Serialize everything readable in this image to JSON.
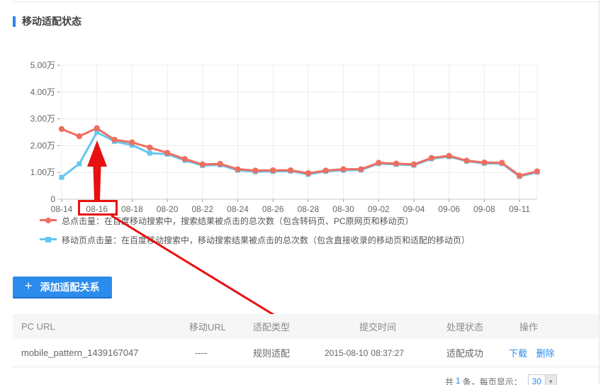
{
  "colors": {
    "accent": "#2b8ced",
    "annotation": "#e81010",
    "link": "#2d8bef",
    "series_total": "#ee6e60",
    "series_mobile": "#66c6f2"
  },
  "header": {
    "title": "移动适配状态"
  },
  "chart_data": {
    "type": "line",
    "title": "",
    "xlabel": "",
    "ylabel": "",
    "unit": "万",
    "ylim": [
      0,
      5
    ],
    "grid": true,
    "legend_position": "bottom-left",
    "x_labels": [
      "08-14",
      "08-16",
      "08-18",
      "08-20",
      "08-22",
      "08-24",
      "08-26",
      "08-28",
      "08-30",
      "09-02",
      "09-04",
      "09-06",
      "09-08",
      "09-11"
    ],
    "label_every_n_points": 2,
    "y_ticks": [
      {
        "label": "5.00万",
        "value": 5
      },
      {
        "label": "4.00万",
        "value": 4
      },
      {
        "label": "3.00万",
        "value": 3
      },
      {
        "label": "2.00万",
        "value": 2
      },
      {
        "label": "1.00万",
        "value": 1
      },
      {
        "label": "0",
        "value": 0
      }
    ],
    "series": [
      {
        "name": "总点击量",
        "color": "#ee6e60",
        "marker": "circle",
        "values": [
          2.62,
          2.35,
          2.65,
          2.22,
          2.12,
          1.93,
          1.73,
          1.5,
          1.3,
          1.32,
          1.12,
          1.07,
          1.08,
          1.08,
          0.97,
          1.07,
          1.12,
          1.12,
          1.36,
          1.33,
          1.3,
          1.54,
          1.62,
          1.44,
          1.37,
          1.36,
          0.88,
          1.04
        ]
      },
      {
        "name": "移动页点击量",
        "color": "#66c6f2",
        "marker": "square",
        "values": [
          0.82,
          1.32,
          2.5,
          2.16,
          2.02,
          1.72,
          1.68,
          1.45,
          1.26,
          1.28,
          1.08,
          1.03,
          1.04,
          1.05,
          0.93,
          1.04,
          1.08,
          1.09,
          1.33,
          1.3,
          1.27,
          1.51,
          1.59,
          1.42,
          1.34,
          1.33,
          0.85,
          1.01
        ]
      }
    ],
    "legend": [
      {
        "series": "总点击量",
        "label": "总点击量：在百度移动搜索中，搜索结果被点击的总次数（包含转码页、PC原网页和移动页）"
      },
      {
        "series": "移动页点击量",
        "label": "移动页点击量：在百度移动搜索中，移动搜索结果被点击的总次数（包含直接收录的移动页和适配的移动页）"
      }
    ]
  },
  "annotations": {
    "color": "#e81010",
    "boxed_x_label": "08-16",
    "boxed_table_value": "2015-08-10"
  },
  "add_button": {
    "plus": "+",
    "label": "添加适配关系"
  },
  "table": {
    "headers": [
      "PC URL",
      "移动URL",
      "适配类型",
      "提交时间",
      "处理状态",
      "操作"
    ],
    "rows": [
      {
        "pc_url": "mobile_pattern_1439167047",
        "mobile_url": "----",
        "adapt_type": "规则适配",
        "submit_date": "2015-08-10",
        "submit_time": "08:37:27",
        "status": "适配成功",
        "actions": [
          "下载",
          "删除"
        ]
      }
    ]
  },
  "pagination": {
    "prefix": "共",
    "count": "1",
    "suffix": "条，每页显示：",
    "page_size": "30"
  }
}
